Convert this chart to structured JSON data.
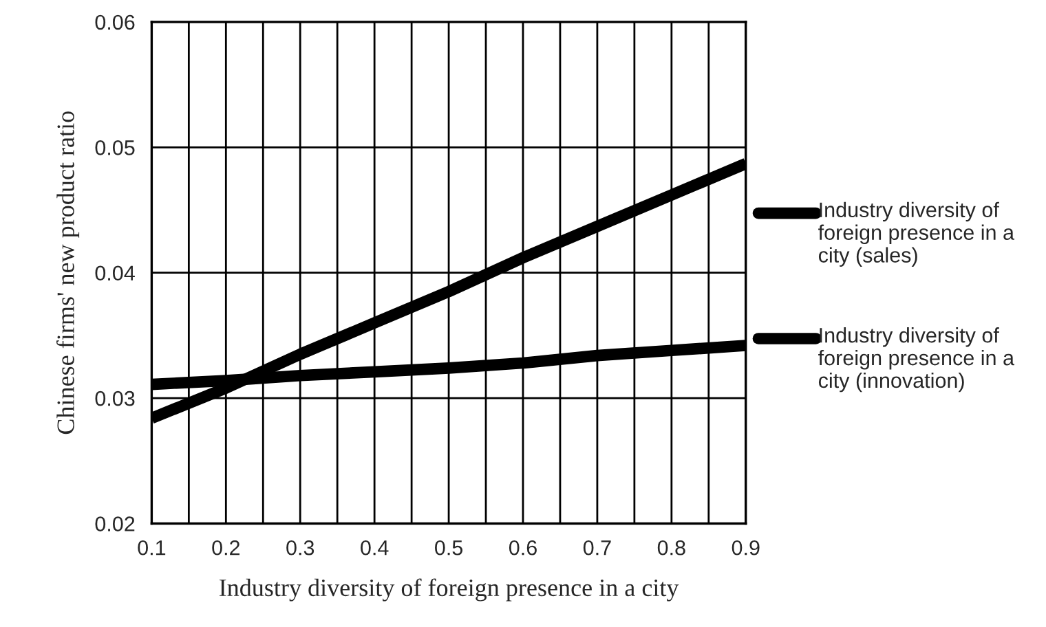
{
  "chart_data": {
    "type": "line",
    "xlabel": "Industry diversity of foreign presence in a city",
    "ylabel": "Chinese firms' new product ratio",
    "x": [
      0.1,
      0.2,
      0.3,
      0.4,
      0.5,
      0.6,
      0.7,
      0.8,
      0.9
    ],
    "series": [
      {
        "name": "Industry diversity of foreign presence in a city (sales)",
        "color": "#000000",
        "values": [
          0.0284,
          0.0308,
          0.0335,
          0.036,
          0.0385,
          0.0412,
          0.0437,
          0.0462,
          0.0487
        ]
      },
      {
        "name": "Industry diversity of foreign presence in a city (innovation)",
        "color": "#000000",
        "values": [
          0.0311,
          0.0314,
          0.0318,
          0.0321,
          0.0324,
          0.0328,
          0.0334,
          0.0338,
          0.0342
        ]
      }
    ],
    "xlim": [
      0.1,
      0.9
    ],
    "ylim": [
      0.02,
      0.06
    ],
    "xticks": [
      0.1,
      {
        "value": 0.15,
        "label": null
      },
      0.2,
      {
        "value": 0.25,
        "label": null
      },
      0.3,
      {
        "value": 0.35,
        "label": null
      },
      0.4,
      {
        "value": 0.45,
        "label": null
      },
      0.5,
      {
        "value": 0.55,
        "label": null
      },
      0.6,
      {
        "value": 0.65,
        "label": null
      },
      0.7,
      {
        "value": 0.75,
        "label": null
      },
      0.8,
      {
        "value": 0.85,
        "label": null
      },
      0.9
    ],
    "yticks": [
      0.02,
      0.03,
      0.04,
      0.05,
      0.06
    ],
    "grid": true,
    "legend": "right",
    "line_style": "solid",
    "marker": "none"
  }
}
